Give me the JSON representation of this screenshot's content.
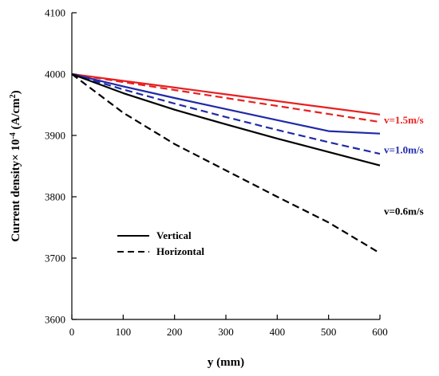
{
  "chart_data": {
    "type": "line",
    "xlabel": "y (mm)",
    "ylabel_main": "Current density× 10",
    "ylabel_exp": "-4",
    "ylabel_unit": " (A/cm",
    "ylabel_unit_exp": "2",
    "ylabel_close": ")",
    "xlim": [
      0,
      600
    ],
    "ylim": [
      3600,
      4100
    ],
    "x_ticks": [
      0,
      100,
      200,
      300,
      400,
      500,
      600
    ],
    "y_ticks": [
      3600,
      3700,
      3800,
      3900,
      4000,
      4100
    ],
    "x_tick_labels": [
      "0",
      "100",
      "200",
      "300",
      "400",
      "500",
      "600"
    ],
    "y_tick_labels": [
      "3600",
      "3700",
      "3800",
      "3900",
      "4000",
      "4100"
    ],
    "grid": false,
    "legend": {
      "position": "bottom-left",
      "entries": [
        {
          "label": "Vertical",
          "dash": "solid"
        },
        {
          "label": "Horizontal",
          "dash": "dashed"
        }
      ]
    },
    "annotations": [
      {
        "text": "v=1.5m/s",
        "color": "#e82020",
        "y": 3926
      },
      {
        "text": "v=1.0m/s",
        "color": "#1f2aa8",
        "y": 3877
      },
      {
        "text": "v=0.6m/s",
        "color": "#000000",
        "y": 3777
      }
    ],
    "x": [
      0,
      100,
      200,
      300,
      400,
      500,
      600
    ],
    "series": [
      {
        "velocity": "1.5m/s",
        "orientation": "Vertical",
        "color": "#e82020",
        "dash": "solid",
        "values": [
          4000,
          3989,
          3978,
          3967,
          3956,
          3945,
          3934
        ]
      },
      {
        "velocity": "1.5m/s",
        "orientation": "Horizontal",
        "color": "#e82020",
        "dash": "dashed",
        "values": [
          4000,
          3987,
          3974,
          3961,
          3948,
          3935,
          3922
        ]
      },
      {
        "velocity": "1.0m/s",
        "orientation": "Vertical",
        "color": "#1f2aa8",
        "dash": "solid",
        "values": [
          4000,
          3980,
          3961,
          3943,
          3925,
          3907,
          3903
        ]
      },
      {
        "velocity": "1.0m/s",
        "orientation": "Horizontal",
        "color": "#1f2aa8",
        "dash": "dashed",
        "values": [
          4000,
          3975,
          3952,
          3930,
          3909,
          3889,
          3870
        ]
      },
      {
        "velocity": "0.6m/s",
        "orientation": "Vertical",
        "color": "#000000",
        "dash": "solid",
        "values": [
          4000,
          3969,
          3942,
          3918,
          3895,
          3873,
          3851
        ]
      },
      {
        "velocity": "0.6m/s",
        "orientation": "Horizontal",
        "color": "#000000",
        "dash": "dashed",
        "values": [
          4000,
          3937,
          3886,
          3843,
          3800,
          3758,
          3708
        ]
      }
    ]
  }
}
